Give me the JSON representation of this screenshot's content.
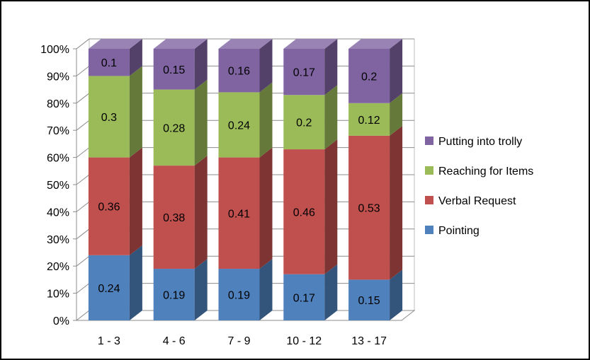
{
  "chart_data": {
    "type": "bar",
    "stacked": true,
    "percent_stacked": true,
    "three_d": true,
    "title": "",
    "xlabel": "",
    "ylabel": "",
    "categories": [
      "1 - 3",
      "4 - 6",
      "7 - 9",
      "10 - 12",
      "13 - 17"
    ],
    "series": [
      {
        "name": "Pointing",
        "values": [
          0.24,
          0.19,
          0.19,
          0.17,
          0.15
        ],
        "labels": [
          "0.24",
          "0.19",
          "0.19",
          "0.17",
          "0.15"
        ],
        "color": "#4F81BD"
      },
      {
        "name": "Verbal Request",
        "values": [
          0.36,
          0.38,
          0.41,
          0.46,
          0.53
        ],
        "labels": [
          "0.36",
          "0.38",
          "0.41",
          "0.46",
          "0.53"
        ],
        "color": "#C0504D"
      },
      {
        "name": "Reaching for Items",
        "values": [
          0.3,
          0.28,
          0.24,
          0.2,
          0.12
        ],
        "labels": [
          "0.3",
          "0.28",
          "0.24",
          "0.2",
          "0.12"
        ],
        "color": "#9BBB59"
      },
      {
        "name": "Putting into trolly",
        "values": [
          0.1,
          0.15,
          0.16,
          0.17,
          0.2
        ],
        "labels": [
          "0.1",
          "0.15",
          "0.16",
          "0.17",
          "0.2"
        ],
        "color": "#8064A2"
      }
    ],
    "yticks": [
      "0%",
      "10%",
      "20%",
      "30%",
      "40%",
      "50%",
      "60%",
      "70%",
      "80%",
      "90%",
      "100%"
    ],
    "ylim": [
      0,
      1
    ],
    "grid": true,
    "legend": {
      "position": "right",
      "order": [
        "Putting into trolly",
        "Reaching for Items",
        "Verbal Request",
        "Pointing"
      ]
    }
  }
}
